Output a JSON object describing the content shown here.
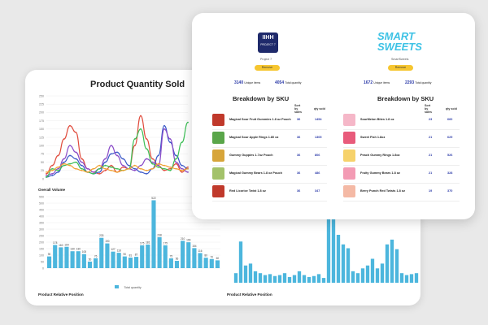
{
  "back": {
    "line_chart_title": "Product Quantity Sold",
    "overall_volume_label": "Overall Volume",
    "legend_label": "Total quantity",
    "relative_position_left": "Product Relative Position",
    "relative_position_right": "Product Relative Position",
    "line_y_ticks": [
      "250",
      "225",
      "200",
      "175",
      "150",
      "125",
      "100",
      "75",
      "50",
      "25",
      "0"
    ],
    "bar_left_y_ticks": [
      "550",
      "500",
      "450",
      "400",
      "350",
      "300",
      "250",
      "200",
      "150",
      "100",
      "50",
      "0"
    ]
  },
  "front": {
    "brand_left": {
      "logo_line1": "IIHH",
      "logo_line2": "PROJECT 7",
      "name": "Project 7",
      "button": "Remove",
      "unique_items": "3140",
      "unique_label": "Unique items",
      "qty": "4054",
      "qty_label": "Total quantity"
    },
    "brand_right": {
      "logo_line1": "SMART",
      "logo_line2": "SWEETS",
      "name": "SmartSweets",
      "button": "Remove",
      "unique_items": "1672",
      "unique_label": "Unique items",
      "qty": "2293",
      "qty_label": "Total quantity"
    },
    "left_table": {
      "title": "Breakdown by SKU",
      "col1": "Sort by sales",
      "col2": "qty sold",
      "rows": [
        {
          "name": "Magical Sour Fruit Gummies 1.8 oz Pouch",
          "a": "36",
          "b": "1454"
        },
        {
          "name": "Magical Sour Apple Rings 1.80 oz",
          "a": "36",
          "b": "1305"
        },
        {
          "name": "Gummy Guppies 1.7oz Pouch",
          "a": "36",
          "b": "806"
        },
        {
          "name": "Magical Gummy Bears 1.8 oz Pouch",
          "a": "36",
          "b": "486"
        },
        {
          "name": "Red Licorice Twist 1.8 oz",
          "a": "36",
          "b": "347"
        }
      ]
    },
    "right_table": {
      "title": "Breakdown by SKU",
      "col1": "Sort by sales",
      "col2": "qty sold",
      "rows": [
        {
          "name": "SourMelon Bites 1.8 oz",
          "a": "23",
          "b": "660"
        },
        {
          "name": "Sweet Fish 1.8oz",
          "a": "21",
          "b": "629"
        },
        {
          "name": "Peach Gummy Rings 1.8oz",
          "a": "21",
          "b": "526"
        },
        {
          "name": "Fruity Gummy Bears 1.8 oz",
          "a": "21",
          "b": "328"
        },
        {
          "name": "Berry Punch Red Twists 1.8 oz",
          "a": "19",
          "b": "370"
        }
      ]
    }
  },
  "chart_data": [
    {
      "type": "line",
      "title": "Product Quantity Sold",
      "ylim": [
        0,
        250
      ],
      "x": [
        0,
        1,
        2,
        3,
        4,
        5,
        6,
        7,
        8,
        9,
        10,
        11,
        12,
        13,
        14,
        15,
        16,
        17,
        18,
        19,
        20,
        21,
        22,
        23,
        24
      ],
      "series": [
        {
          "name": "red",
          "color": "#e04b3c",
          "values": [
            15,
            40,
            70,
            120,
            160,
            140,
            60,
            30,
            20,
            15,
            25,
            40,
            20,
            35,
            30,
            100,
            190,
            120,
            60,
            40,
            25,
            30,
            45,
            20,
            35
          ]
        },
        {
          "name": "blue",
          "color": "#3a58c8",
          "values": [
            5,
            10,
            20,
            50,
            70,
            60,
            40,
            20,
            15,
            20,
            50,
            75,
            80,
            60,
            40,
            30,
            20,
            15,
            30,
            70,
            160,
            110,
            70,
            40,
            30
          ]
        },
        {
          "name": "purple",
          "color": "#8a4bc8",
          "values": [
            10,
            15,
            30,
            60,
            100,
            80,
            50,
            30,
            20,
            30,
            60,
            100,
            70,
            40,
            30,
            25,
            40,
            60,
            50,
            40,
            150,
            120,
            50,
            30,
            20
          ]
        },
        {
          "name": "green",
          "color": "#3cbf55",
          "values": [
            5,
            30,
            25,
            40,
            45,
            50,
            30,
            20,
            15,
            30,
            40,
            35,
            30,
            25,
            30,
            120,
            150,
            90,
            45,
            35,
            30,
            25,
            60,
            110,
            170
          ]
        },
        {
          "name": "orange",
          "color": "#f0a030",
          "values": [
            20,
            25,
            35,
            45,
            40,
            30,
            25,
            20,
            30,
            40,
            30,
            25,
            20,
            25,
            30,
            40,
            30,
            25,
            30,
            45,
            40,
            35,
            30,
            25,
            30
          ]
        }
      ]
    },
    {
      "type": "bar",
      "title": "Overall Volume",
      "ylim": [
        0,
        550
      ],
      "series": [
        {
          "name": "Total quantity",
          "values": [
            90,
            178,
            160,
            164,
            130,
            130,
            108,
            50,
            76,
            233,
            190,
            127,
            118,
            90,
            81,
            87,
            175,
            181,
            522,
            238,
            175,
            75,
            56,
            210,
            199,
            154,
            116,
            80,
            70,
            60
          ]
        }
      ]
    },
    {
      "type": "bar",
      "title": "Product Relative Position",
      "ylim": [
        0,
        100
      ],
      "series": [
        {
          "name": "Total quantity",
          "values": [
            10,
            43,
            18,
            20,
            12,
            10,
            8,
            9,
            7,
            8,
            10,
            6,
            8,
            12,
            8,
            6,
            7,
            9,
            5,
            95,
            75,
            50,
            40,
            36,
            12,
            10,
            15,
            18,
            25,
            15,
            20,
            40,
            45,
            35,
            10,
            8,
            9,
            10
          ]
        }
      ]
    }
  ]
}
